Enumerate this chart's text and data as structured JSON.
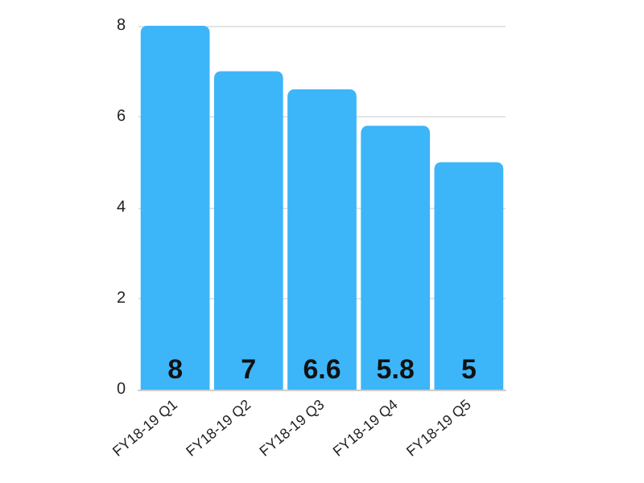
{
  "chart_data": {
    "type": "bar",
    "categories": [
      "FY18-19 Q1",
      "FY18-19 Q2",
      "FY18-19 Q3",
      "FY18-19 Q4",
      "FY18-19 Q5"
    ],
    "values": [
      8,
      7,
      6.6,
      5.8,
      5
    ],
    "color": "#3db5f9",
    "ylim": [
      0,
      8
    ],
    "yticks": [
      0,
      2,
      4,
      6,
      8
    ],
    "grid": "y",
    "data_labels": true
  }
}
